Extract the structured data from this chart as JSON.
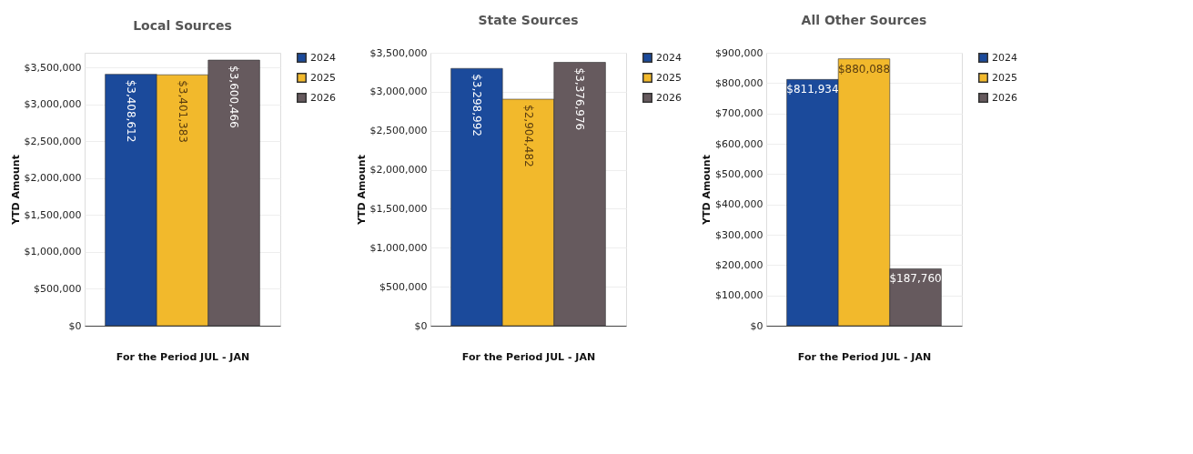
{
  "chart_data": [
    {
      "type": "bar",
      "title": "Local Sources",
      "xlabel": "For the Period JUL - JAN",
      "ylabel": "YTD Amount",
      "categories": [
        null
      ],
      "ylim": [
        0,
        3700000
      ],
      "yticks": [
        {
          "value": 0,
          "label": "$0"
        },
        {
          "value": 500000,
          "label": "$500,000"
        },
        {
          "value": 1000000,
          "label": "$1,000,000"
        },
        {
          "value": 1500000,
          "label": "$1,500,000"
        },
        {
          "value": 2000000,
          "label": "$2,000,000"
        },
        {
          "value": 2500000,
          "label": "$2,500,000"
        },
        {
          "value": 3000000,
          "label": "$3,000,000"
        },
        {
          "value": 3500000,
          "label": "$3,500,000"
        }
      ],
      "series": [
        {
          "name": "2024",
          "color": "#1b4a9b",
          "values": [
            3408612
          ],
          "value_labels": [
            "$3,408,612"
          ]
        },
        {
          "name": "2025",
          "color": "#f2b92c",
          "values": [
            3401383
          ],
          "value_labels": [
            "$3,401,383"
          ]
        },
        {
          "name": "2026",
          "color": "#665a5e",
          "values": [
            3600466
          ],
          "value_labels": [
            "$3,600,466"
          ]
        }
      ],
      "grid": "y",
      "legend": "top right",
      "tick_labels": "y"
    },
    {
      "type": "bar",
      "title": "State Sources",
      "xlabel": "For the Period JUL - JAN",
      "ylabel": "YTD Amount",
      "categories": [
        null
      ],
      "ylim": [
        0,
        3500000
      ],
      "yticks": [
        {
          "value": 0,
          "label": "$0"
        },
        {
          "value": 500000,
          "label": "$500,000"
        },
        {
          "value": 1000000,
          "label": "$1,000,000"
        },
        {
          "value": 1500000,
          "label": "$1,500,000"
        },
        {
          "value": 2000000,
          "label": "$2,000,000"
        },
        {
          "value": 2500000,
          "label": "$2,500,000"
        },
        {
          "value": 3000000,
          "label": "$3,000,000"
        },
        {
          "value": 3500000,
          "label": "$3,500,000"
        }
      ],
      "series": [
        {
          "name": "2024",
          "color": "#1b4a9b",
          "values": [
            3298992
          ],
          "value_labels": [
            "$3,298,992"
          ]
        },
        {
          "name": "2025",
          "color": "#f2b92c",
          "values": [
            2904482
          ],
          "value_labels": [
            "$2,904,482"
          ]
        },
        {
          "name": "2026",
          "color": "#665a5e",
          "values": [
            3376976
          ],
          "value_labels": [
            "$3,376,976"
          ]
        }
      ],
      "grid": "y",
      "legend": "top right",
      "tick_labels": "y"
    },
    {
      "type": "bar",
      "title": "All Other Sources",
      "xlabel": "For the Period JUL - JAN",
      "ylabel": "YTD Amount",
      "categories": [
        null
      ],
      "ylim": [
        0,
        900000
      ],
      "yticks": [
        {
          "value": 0,
          "label": "$0"
        },
        {
          "value": 100000,
          "label": "$100,000"
        },
        {
          "value": 200000,
          "label": "$200,000"
        },
        {
          "value": 300000,
          "label": "$300,000"
        },
        {
          "value": 400000,
          "label": "$400,000"
        },
        {
          "value": 500000,
          "label": "$500,000"
        },
        {
          "value": 600000,
          "label": "$600,000"
        },
        {
          "value": 700000,
          "label": "$700,000"
        },
        {
          "value": 800000,
          "label": "$800,000"
        },
        {
          "value": 900000,
          "label": "$900,000"
        }
      ],
      "series": [
        {
          "name": "2024",
          "color": "#1b4a9b",
          "values": [
            811934
          ],
          "value_labels": [
            "$811,934"
          ]
        },
        {
          "name": "2025",
          "color": "#f2b92c",
          "values": [
            880088
          ],
          "value_labels": [
            "$880,088"
          ]
        },
        {
          "name": "2026",
          "color": "#665a5e",
          "values": [
            187760
          ],
          "value_labels": [
            "$187,760"
          ]
        }
      ],
      "grid": "y",
      "legend": "top right",
      "tick_labels": "y"
    }
  ]
}
